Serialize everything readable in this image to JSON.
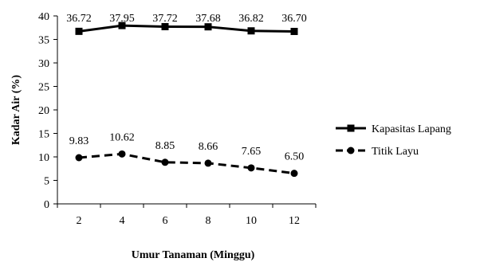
{
  "chart_data": {
    "type": "line",
    "title": "",
    "xlabel": "Umur Tanaman (Minggu)",
    "ylabel": "Kadar Air (%)",
    "x": [
      2,
      4,
      6,
      8,
      10,
      12
    ],
    "x_tick_labels": [
      "2",
      "4",
      "6",
      "8",
      "10",
      "12"
    ],
    "ylim": [
      0,
      40
    ],
    "y_ticks": [
      0,
      5,
      10,
      15,
      20,
      25,
      30,
      35,
      40
    ],
    "y_tick_labels": [
      "0",
      "5",
      "10",
      "15",
      "20",
      "25",
      "30",
      "35",
      "40"
    ],
    "grid": false,
    "legend_position": "right",
    "series": [
      {
        "name": "Kapasitas Lapang",
        "values": [
          36.72,
          37.95,
          37.72,
          37.68,
          36.82,
          36.7
        ],
        "labels": [
          "36.72",
          "37.95",
          "37.72",
          "37.68",
          "36.82",
          "36.70"
        ],
        "marker": "square",
        "line_style": "solid",
        "color": "#000000"
      },
      {
        "name": "Titik Layu",
        "values": [
          9.83,
          10.62,
          8.85,
          8.66,
          7.65,
          6.5
        ],
        "labels": [
          "9.83",
          "10.62",
          "8.85",
          "8.66",
          "7.65",
          "6.50"
        ],
        "marker": "circle",
        "line_style": "dashed",
        "color": "#000000"
      }
    ]
  }
}
